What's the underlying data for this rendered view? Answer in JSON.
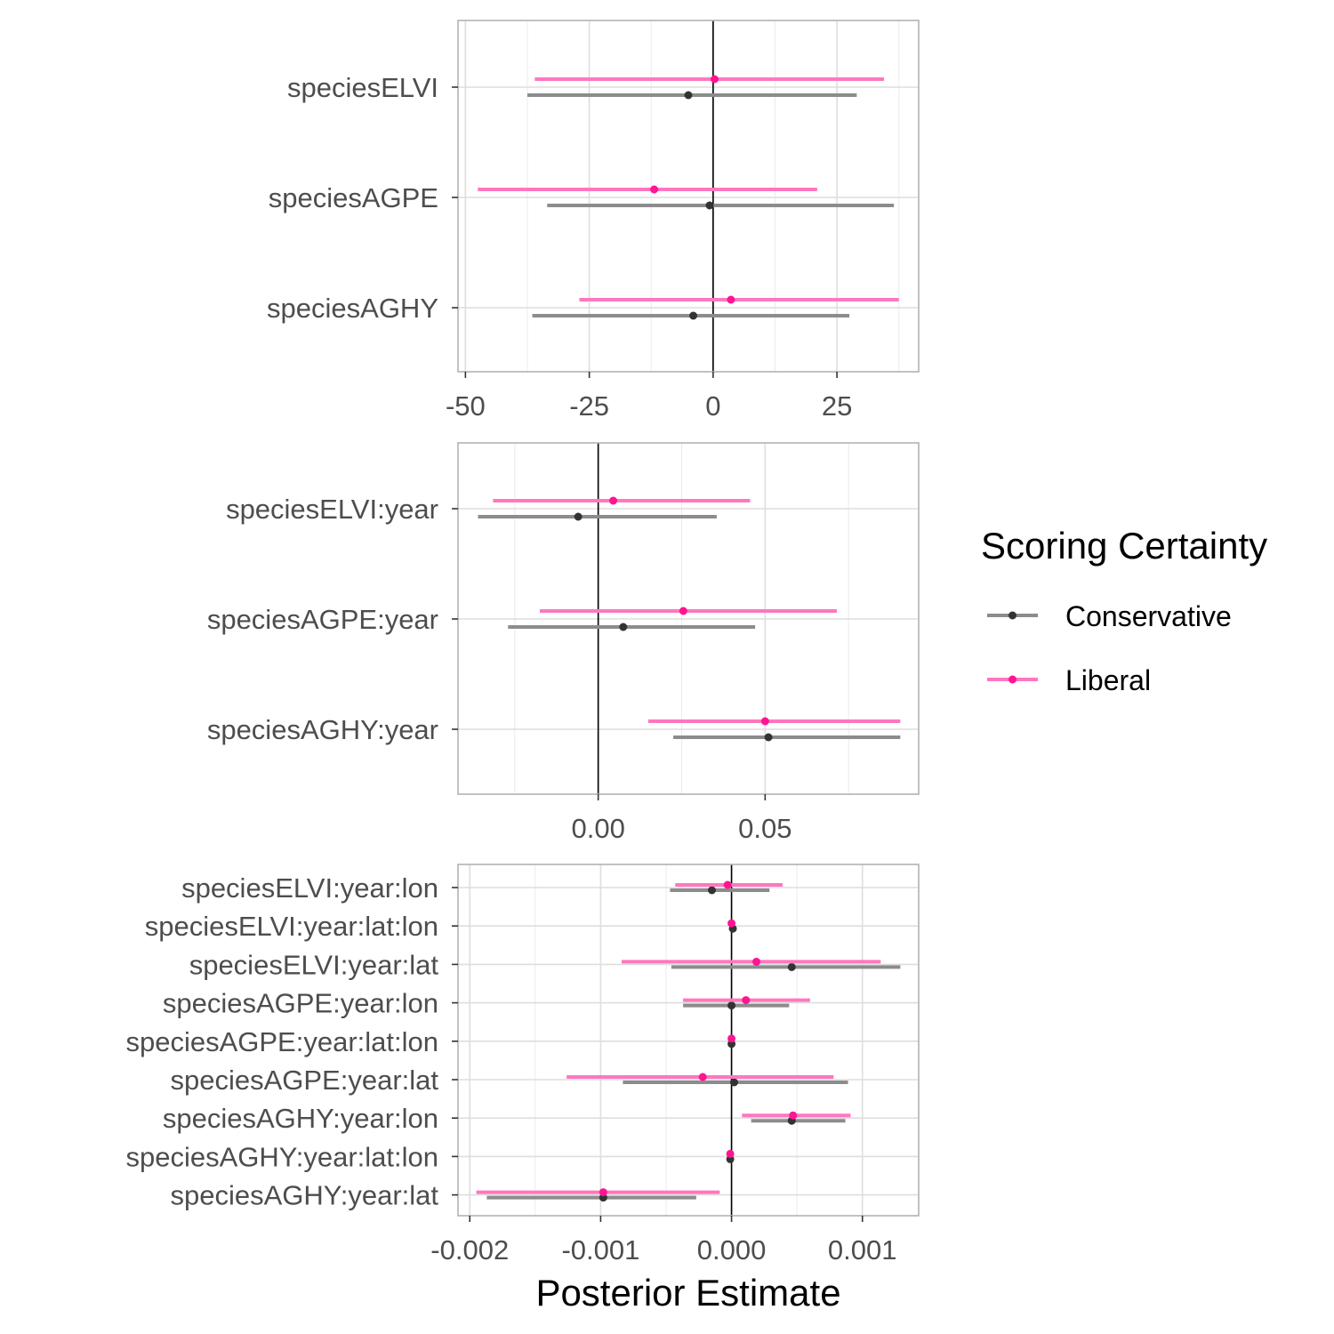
{
  "chart_data": {
    "type": "scatter",
    "subtype": "coefficient-interval-plot",
    "x_axis_title": "Posterior Estimate",
    "grid": true,
    "legend": {
      "title": "Scoring Certainty",
      "placement": "right",
      "entries": [
        {
          "name": "Conservative",
          "color": "#333333",
          "line_color": "#8c8c8c"
        },
        {
          "name": "Liberal",
          "color": "#ff1493",
          "line_color": "#ff77bf"
        }
      ]
    },
    "reference_line_x": 0,
    "panels": [
      {
        "xlim": [
          -51.5,
          41.5
        ],
        "x_ticks": [
          -50,
          -25,
          0,
          25
        ],
        "x_tick_labels": [
          "-50",
          "-25",
          "0",
          "25"
        ],
        "y_categories": [
          "speciesELVI",
          "speciesAGPE",
          "speciesAGHY"
        ],
        "series": [
          {
            "name": "Conservative",
            "estimates": [
              -5.0,
              -0.7,
              -4.0
            ],
            "lower": [
              -37.5,
              -33.5,
              -36.5
            ],
            "upper": [
              29.0,
              36.5,
              27.5
            ]
          },
          {
            "name": "Liberal",
            "estimates": [
              0.3,
              -11.9,
              3.6
            ],
            "lower": [
              -36.0,
              -47.5,
              -27.0
            ],
            "upper": [
              34.5,
              21.0,
              37.5
            ]
          }
        ]
      },
      {
        "xlim": [
          -0.042,
          0.096
        ],
        "x_ticks": [
          0.0,
          0.05
        ],
        "x_tick_labels": [
          "0.00",
          "0.05"
        ],
        "y_categories": [
          "speciesELVI:year",
          "speciesAGPE:year",
          "speciesAGHY:year"
        ],
        "series": [
          {
            "name": "Conservative",
            "estimates": [
              -0.006,
              0.0075,
              0.051
            ],
            "lower": [
              -0.036,
              -0.027,
              0.0225
            ],
            "upper": [
              0.0355,
              0.047,
              0.0905
            ]
          },
          {
            "name": "Liberal",
            "estimates": [
              0.0045,
              0.0255,
              0.05
            ],
            "lower": [
              -0.0315,
              -0.0175,
              0.015
            ],
            "upper": [
              0.0455,
              0.0715,
              0.0905
            ]
          }
        ]
      },
      {
        "xlim": [
          -0.00209,
          0.00143
        ],
        "x_ticks": [
          -0.002,
          -0.001,
          0.0,
          0.001
        ],
        "x_tick_labels": [
          "-0.002",
          "-0.001",
          "0.000",
          "0.001"
        ],
        "y_categories": [
          "speciesELVI:year:lon",
          "speciesELVI:year:lat:lon",
          "speciesELVI:year:lat",
          "speciesAGPE:year:lon",
          "speciesAGPE:year:lat:lon",
          "speciesAGPE:year:lat",
          "speciesAGHY:year:lon",
          "speciesAGHY:year:lat:lon",
          "speciesAGHY:year:lat"
        ],
        "series": [
          {
            "name": "Conservative",
            "estimates": [
              -0.00015,
              1e-05,
              0.00046,
              0.0,
              0.0,
              2e-05,
              0.00046,
              -1e-05,
              -0.00098
            ],
            "lower": [
              -0.00047,
              0.0,
              -0.00046,
              -0.00037,
              -1e-05,
              -0.00083,
              0.00015,
              -1e-05,
              -0.00187
            ],
            "upper": [
              0.00029,
              2e-05,
              0.00129,
              0.00044,
              1e-05,
              0.00089,
              0.00087,
              0.0,
              -0.00027
            ]
          },
          {
            "name": "Liberal",
            "estimates": [
              -3e-05,
              0.0,
              0.00019,
              0.00011,
              0.0,
              -0.00022,
              0.00047,
              -1e-05,
              -0.00098
            ],
            "lower": [
              -0.00043,
              -1e-05,
              -0.00084,
              -0.00037,
              -1e-05,
              -0.00126,
              8e-05,
              -1e-05,
              -0.00195
            ],
            "upper": [
              0.00039,
              1e-05,
              0.00114,
              0.0006,
              0.0,
              0.00078,
              0.00091,
              0.0,
              -9e-05
            ]
          }
        ]
      }
    ]
  }
}
